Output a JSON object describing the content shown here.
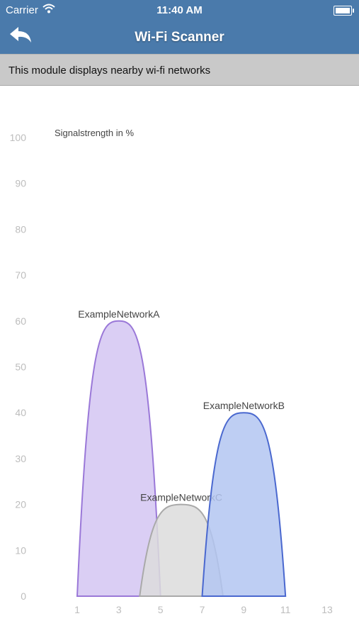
{
  "status_bar": {
    "carrier": "Carrier",
    "time": "11:40 AM",
    "wifi_icon": "wifi-icon",
    "battery_icon": "battery-icon"
  },
  "nav_bar": {
    "title": "Wi-Fi Scanner",
    "back_icon": "back-arrow-icon"
  },
  "info": {
    "text": "This module displays nearby wi-fi networks"
  },
  "chart_data": {
    "type": "area",
    "ylabel": "Signalstrength in %",
    "xlabel": "",
    "ylim": [
      0,
      100
    ],
    "xlim": [
      0,
      14
    ],
    "y_ticks": [
      0,
      10,
      20,
      30,
      40,
      50,
      60,
      70,
      80,
      90,
      100
    ],
    "x_ticks": [
      1,
      3,
      5,
      7,
      9,
      11,
      13
    ],
    "grid": false,
    "series": [
      {
        "name": "ExampleNetworkA",
        "center": 3,
        "x_start": 1,
        "x_end": 5,
        "peak": 60,
        "fill": "#d3c6f2",
        "stroke": "#9a78d8"
      },
      {
        "name": "ExampleNetworkC",
        "center": 6,
        "x_start": 4,
        "x_end": 8,
        "peak": 20,
        "fill": "#dcdcdc",
        "stroke": "#a9a9a9"
      },
      {
        "name": "ExampleNetworkB",
        "center": 9,
        "x_start": 7,
        "x_end": 11,
        "peak": 40,
        "fill": "#b3c6f1",
        "stroke": "#4a68cf"
      }
    ]
  }
}
